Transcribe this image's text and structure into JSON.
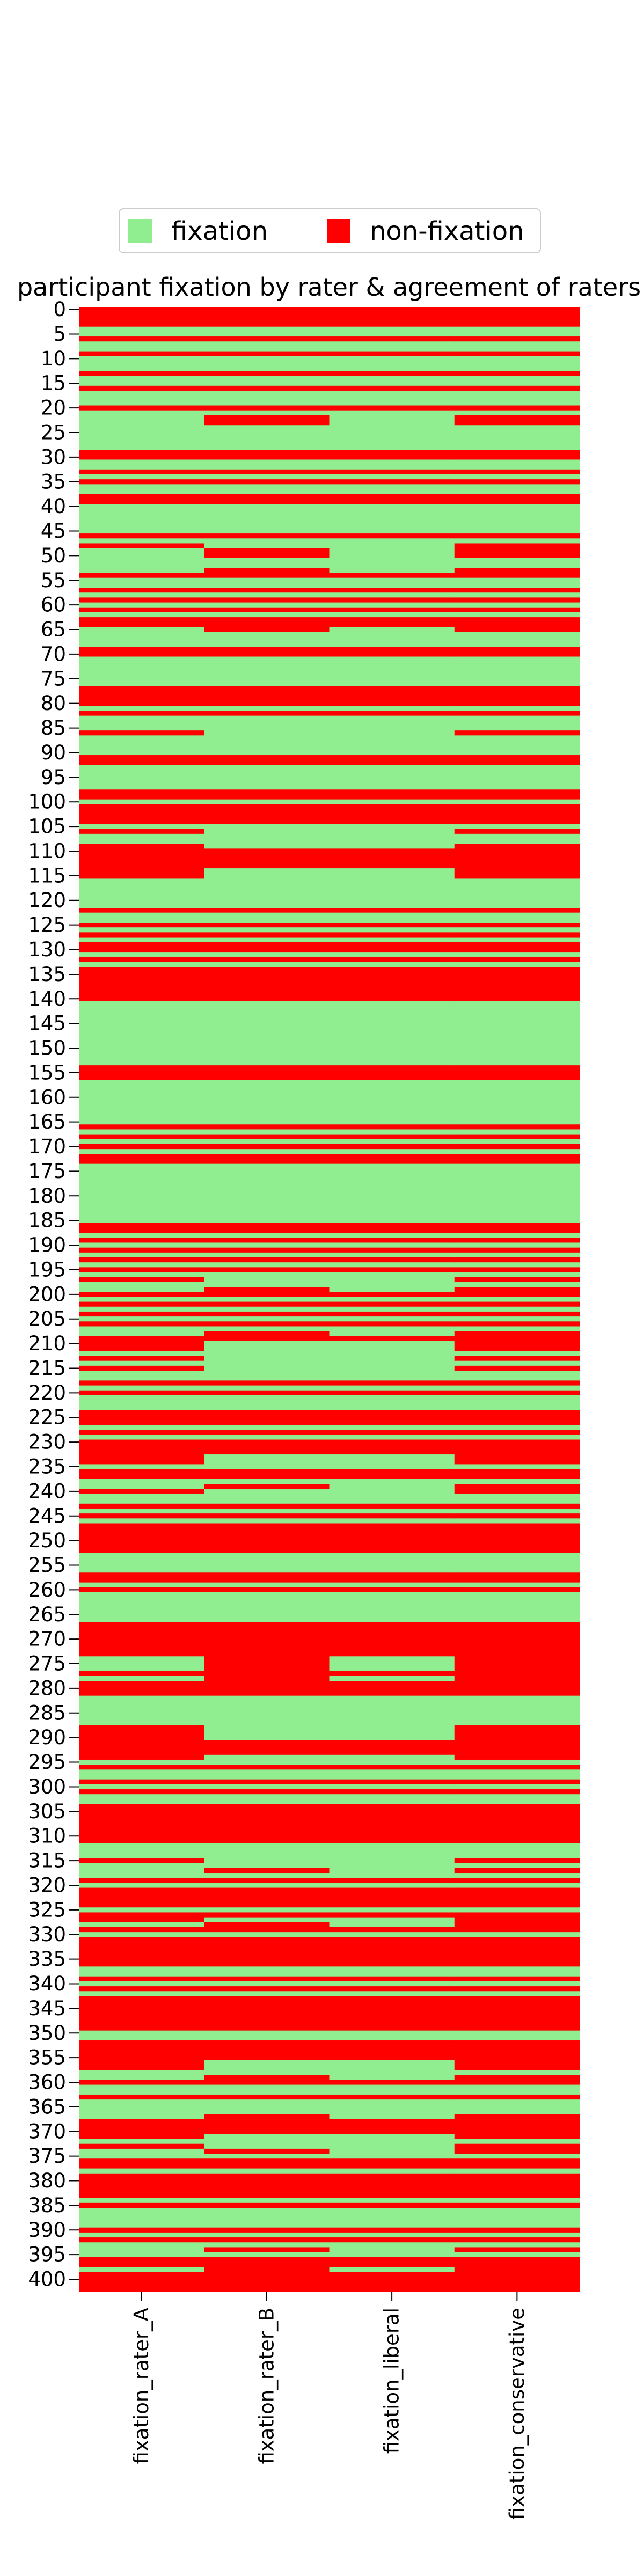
{
  "chart_data": {
    "type": "heatmap",
    "title": "participant fixation by rater & agreement of raters",
    "categories": [
      "fixation_rater_A",
      "fixation_rater_B",
      "fixation_liberal",
      "fixation_conservative"
    ],
    "legend": {
      "labels": [
        "fixation",
        "non-fixation"
      ],
      "colors": [
        "#90ee90",
        "#ff0000"
      ],
      "position": "upper center"
    },
    "yticks": [
      0,
      5,
      10,
      15,
      20,
      25,
      30,
      35,
      40,
      45,
      50,
      55,
      60,
      65,
      70,
      75,
      80,
      85,
      90,
      95,
      100,
      105,
      110,
      115,
      120,
      125,
      130,
      135,
      140,
      145,
      150,
      155,
      160,
      165,
      170,
      175,
      180,
      185,
      190,
      195,
      200,
      205,
      210,
      215,
      220,
      225,
      230,
      235,
      240,
      245,
      250,
      255,
      260,
      265,
      270,
      275,
      280,
      285,
      290,
      295,
      300,
      305,
      310,
      315,
      320,
      325,
      330,
      335,
      340,
      345,
      350,
      355,
      360,
      365,
      370,
      375,
      380,
      385,
      390,
      395,
      400
    ],
    "values": [
      [
        1,
        1,
        1,
        1,
        0,
        0,
        1,
        0,
        0,
        1,
        0,
        0,
        0,
        1,
        0,
        0,
        1,
        0,
        0,
        0,
        1,
        0,
        0,
        0,
        0,
        0,
        0,
        0,
        0,
        1,
        1,
        0,
        0,
        1,
        0,
        1,
        0,
        0,
        1,
        1,
        0,
        0,
        0,
        0,
        0,
        0,
        1,
        0,
        1,
        0,
        0,
        0,
        0,
        0,
        1,
        0,
        0,
        1,
        0,
        1,
        0,
        1,
        0,
        1,
        1,
        0,
        0,
        0,
        0,
        1,
        1,
        0,
        0,
        0,
        0,
        0,
        0,
        1,
        1,
        1,
        1,
        0,
        1,
        0,
        0,
        0,
        1,
        0,
        0,
        0,
        0,
        1,
        1,
        0,
        0,
        0,
        0,
        0,
        1,
        1,
        0,
        1,
        1,
        1,
        1,
        0,
        1,
        0,
        0,
        1,
        1,
        1,
        1,
        1,
        1,
        1,
        0,
        0,
        0,
        0,
        0,
        0,
        1,
        0,
        0,
        1,
        0,
        1,
        0,
        1,
        1,
        0,
        1,
        0,
        1,
        1,
        1,
        1,
        1,
        1,
        1,
        0,
        0,
        0,
        0,
        0,
        0,
        0,
        0,
        0,
        0,
        0,
        0,
        0,
        1,
        1,
        1,
        0,
        0,
        0,
        0,
        0,
        0,
        0,
        0,
        0,
        1,
        0,
        1,
        0,
        1,
        0,
        1,
        1,
        0,
        0,
        0,
        0,
        0,
        0,
        0,
        0,
        0,
        0,
        0,
        0,
        1,
        1,
        0,
        1,
        0,
        1,
        0,
        1,
        0,
        1,
        0,
        1,
        0,
        0,
        1,
        0,
        1,
        0,
        1,
        0,
        1,
        0,
        0,
        1,
        1,
        1,
        0,
        1,
        0,
        1,
        0,
        0,
        1,
        0,
        1,
        0,
        0,
        0,
        1,
        1,
        1,
        0,
        1,
        0,
        1,
        1,
        1,
        1,
        1,
        0,
        1,
        1,
        0,
        0,
        1,
        0,
        0,
        1,
        0,
        1,
        0,
        1,
        1,
        1,
        1,
        1,
        1,
        0,
        0,
        0,
        0,
        1,
        1,
        0,
        1,
        0,
        0,
        0,
        0,
        0,
        0,
        1,
        1,
        1,
        1,
        1,
        1,
        1,
        0,
        0,
        0,
        1,
        0,
        1,
        1,
        1,
        0,
        0,
        0,
        0,
        0,
        0,
        1,
        1,
        1,
        1,
        1,
        1,
        1,
        0,
        1,
        0,
        0,
        1,
        0,
        1,
        0,
        0,
        1,
        1,
        1,
        1,
        1,
        1,
        1,
        1,
        0,
        0,
        0,
        1,
        0,
        0,
        0,
        1,
        0,
        1,
        1,
        1,
        1,
        0,
        1,
        1,
        0,
        1,
        0,
        1,
        1,
        1,
        1,
        1,
        1,
        0,
        0,
        1,
        0,
        1,
        0,
        1,
        1,
        1,
        1,
        1,
        1,
        1,
        0,
        0,
        1,
        1,
        1,
        1,
        1,
        1,
        0,
        0,
        1,
        0,
        0,
        1,
        0,
        0,
        0,
        0,
        1,
        1,
        1,
        1,
        0,
        1,
        0,
        0,
        1,
        1,
        0,
        1,
        1,
        1,
        1,
        1,
        0,
        1,
        0,
        0,
        0,
        0,
        1,
        0,
        1,
        0,
        0,
        0,
        1,
        1,
        0,
        1,
        1,
        1,
        1
      ],
      [
        1,
        1,
        1,
        1,
        0,
        0,
        1,
        0,
        0,
        1,
        0,
        0,
        0,
        1,
        0,
        0,
        1,
        0,
        0,
        0,
        1,
        0,
        1,
        1,
        0,
        0,
        0,
        0,
        0,
        1,
        1,
        0,
        0,
        1,
        0,
        1,
        0,
        0,
        1,
        1,
        0,
        0,
        0,
        0,
        0,
        0,
        1,
        0,
        0,
        1,
        1,
        0,
        0,
        1,
        1,
        0,
        0,
        1,
        0,
        1,
        0,
        1,
        0,
        1,
        1,
        1,
        0,
        0,
        0,
        1,
        1,
        0,
        0,
        0,
        0,
        0,
        0,
        1,
        1,
        1,
        1,
        0,
        1,
        0,
        0,
        0,
        0,
        0,
        0,
        0,
        0,
        1,
        1,
        0,
        0,
        0,
        0,
        0,
        1,
        1,
        0,
        1,
        1,
        1,
        1,
        0,
        0,
        0,
        0,
        0,
        1,
        1,
        1,
        1,
        0,
        0,
        0,
        0,
        0,
        0,
        0,
        0,
        1,
        0,
        0,
        1,
        0,
        1,
        0,
        1,
        1,
        0,
        1,
        0,
        1,
        1,
        1,
        1,
        1,
        1,
        1,
        0,
        0,
        0,
        0,
        0,
        0,
        0,
        0,
        0,
        0,
        0,
        0,
        0,
        1,
        1,
        1,
        0,
        0,
        0,
        0,
        0,
        0,
        0,
        0,
        0,
        1,
        0,
        1,
        0,
        1,
        0,
        1,
        1,
        0,
        0,
        0,
        0,
        0,
        0,
        0,
        0,
        0,
        0,
        0,
        0,
        1,
        1,
        0,
        1,
        0,
        1,
        0,
        1,
        0,
        1,
        0,
        0,
        0,
        1,
        1,
        0,
        1,
        0,
        1,
        0,
        1,
        0,
        1,
        1,
        0,
        0,
        0,
        0,
        0,
        0,
        0,
        0,
        1,
        0,
        1,
        0,
        0,
        0,
        1,
        1,
        1,
        0,
        1,
        0,
        1,
        1,
        1,
        0,
        0,
        0,
        1,
        1,
        0,
        1,
        0,
        0,
        0,
        1,
        0,
        1,
        0,
        1,
        1,
        1,
        1,
        1,
        1,
        0,
        0,
        0,
        0,
        1,
        1,
        0,
        1,
        0,
        0,
        0,
        0,
        0,
        0,
        1,
        1,
        1,
        1,
        1,
        1,
        1,
        1,
        1,
        1,
        1,
        1,
        1,
        1,
        1,
        0,
        0,
        0,
        0,
        0,
        0,
        0,
        0,
        0,
        1,
        1,
        1,
        0,
        0,
        1,
        0,
        0,
        1,
        0,
        1,
        0,
        0,
        1,
        1,
        1,
        1,
        1,
        1,
        1,
        1,
        0,
        0,
        0,
        0,
        0,
        1,
        0,
        1,
        0,
        1,
        1,
        1,
        1,
        0,
        1,
        0,
        1,
        1,
        0,
        1,
        1,
        1,
        1,
        1,
        1,
        0,
        0,
        1,
        0,
        1,
        0,
        1,
        1,
        1,
        1,
        1,
        1,
        1,
        0,
        0,
        1,
        1,
        1,
        1,
        0,
        0,
        0,
        1,
        1,
        0,
        0,
        1,
        0,
        0,
        0,
        1,
        1,
        1,
        1,
        0,
        0,
        0,
        1,
        0,
        1,
        1,
        0,
        1,
        1,
        1,
        1,
        1,
        0,
        1,
        0,
        0,
        0,
        0,
        1,
        0,
        1,
        0,
        1,
        0,
        1,
        1,
        1,
        1,
        1,
        1,
        1
      ],
      [
        1,
        1,
        1,
        1,
        0,
        0,
        1,
        0,
        0,
        1,
        0,
        0,
        0,
        1,
        0,
        0,
        1,
        0,
        0,
        0,
        1,
        0,
        0,
        0,
        0,
        0,
        0,
        0,
        0,
        1,
        1,
        0,
        0,
        1,
        0,
        1,
        0,
        0,
        1,
        1,
        0,
        0,
        0,
        0,
        0,
        0,
        1,
        0,
        0,
        0,
        0,
        0,
        0,
        0,
        1,
        0,
        0,
        1,
        0,
        1,
        0,
        1,
        0,
        1,
        1,
        0,
        0,
        0,
        0,
        1,
        1,
        0,
        0,
        0,
        0,
        0,
        0,
        1,
        1,
        1,
        1,
        0,
        1,
        0,
        0,
        0,
        0,
        0,
        0,
        0,
        0,
        1,
        1,
        0,
        0,
        0,
        0,
        0,
        1,
        1,
        0,
        1,
        1,
        1,
        1,
        0,
        0,
        0,
        0,
        0,
        1,
        1,
        1,
        1,
        0,
        0,
        0,
        0,
        0,
        0,
        0,
        0,
        1,
        0,
        0,
        1,
        0,
        1,
        0,
        1,
        1,
        0,
        1,
        0,
        1,
        1,
        1,
        1,
        1,
        1,
        1,
        0,
        0,
        0,
        0,
        0,
        0,
        0,
        0,
        0,
        0,
        0,
        0,
        0,
        1,
        1,
        1,
        0,
        0,
        0,
        0,
        0,
        0,
        0,
        0,
        0,
        1,
        0,
        1,
        0,
        1,
        0,
        1,
        1,
        0,
        0,
        0,
        0,
        0,
        0,
        0,
        0,
        0,
        0,
        0,
        0,
        1,
        1,
        0,
        1,
        0,
        1,
        0,
        1,
        0,
        1,
        0,
        0,
        0,
        0,
        1,
        0,
        1,
        0,
        1,
        0,
        1,
        0,
        0,
        1,
        0,
        0,
        0,
        0,
        0,
        0,
        0,
        0,
        1,
        0,
        1,
        0,
        0,
        0,
        1,
        1,
        1,
        0,
        1,
        0,
        1,
        1,
        1,
        0,
        0,
        0,
        1,
        1,
        0,
        0,
        0,
        0,
        0,
        1,
        0,
        1,
        0,
        1,
        1,
        1,
        1,
        1,
        1,
        0,
        0,
        0,
        0,
        1,
        1,
        0,
        1,
        0,
        0,
        0,
        0,
        0,
        0,
        1,
        1,
        1,
        1,
        1,
        1,
        1,
        0,
        0,
        0,
        1,
        0,
        1,
        1,
        1,
        0,
        0,
        0,
        0,
        0,
        0,
        0,
        0,
        0,
        1,
        1,
        1,
        0,
        0,
        1,
        0,
        0,
        1,
        0,
        1,
        0,
        0,
        1,
        1,
        1,
        1,
        1,
        1,
        1,
        1,
        0,
        0,
        0,
        0,
        0,
        0,
        0,
        1,
        0,
        1,
        1,
        1,
        1,
        0,
        1,
        0,
        0,
        1,
        0,
        1,
        1,
        1,
        1,
        1,
        1,
        0,
        0,
        1,
        0,
        1,
        0,
        1,
        1,
        1,
        1,
        1,
        1,
        1,
        0,
        0,
        1,
        1,
        1,
        1,
        0,
        0,
        0,
        0,
        1,
        0,
        0,
        1,
        0,
        0,
        0,
        0,
        1,
        1,
        1,
        0,
        0,
        0,
        0,
        0,
        1,
        1,
        0,
        1,
        1,
        1,
        1,
        1,
        0,
        1,
        0,
        0,
        0,
        0,
        1,
        0,
        1,
        0,
        0,
        0,
        1,
        1,
        0,
        1,
        1,
        1,
        1
      ],
      [
        1,
        1,
        1,
        1,
        0,
        0,
        1,
        0,
        0,
        1,
        0,
        0,
        0,
        1,
        0,
        0,
        1,
        0,
        0,
        0,
        1,
        0,
        1,
        1,
        0,
        0,
        0,
        0,
        0,
        1,
        1,
        0,
        0,
        1,
        0,
        1,
        0,
        0,
        1,
        1,
        0,
        0,
        0,
        0,
        0,
        0,
        1,
        0,
        1,
        1,
        1,
        0,
        0,
        1,
        1,
        0,
        0,
        1,
        0,
        1,
        0,
        1,
        0,
        1,
        1,
        1,
        0,
        0,
        0,
        1,
        1,
        0,
        0,
        0,
        0,
        0,
        0,
        1,
        1,
        1,
        1,
        0,
        1,
        0,
        0,
        0,
        1,
        0,
        0,
        0,
        0,
        1,
        1,
        0,
        0,
        0,
        0,
        0,
        1,
        1,
        0,
        1,
        1,
        1,
        1,
        0,
        1,
        0,
        0,
        1,
        1,
        1,
        1,
        1,
        1,
        1,
        0,
        0,
        0,
        0,
        0,
        0,
        1,
        0,
        0,
        1,
        0,
        1,
        0,
        1,
        1,
        0,
        1,
        0,
        1,
        1,
        1,
        1,
        1,
        1,
        1,
        0,
        0,
        0,
        0,
        0,
        0,
        0,
        0,
        0,
        0,
        0,
        0,
        0,
        1,
        1,
        1,
        0,
        0,
        0,
        0,
        0,
        0,
        0,
        0,
        0,
        1,
        0,
        1,
        0,
        1,
        0,
        1,
        1,
        0,
        0,
        0,
        0,
        0,
        0,
        0,
        0,
        0,
        0,
        0,
        0,
        1,
        1,
        0,
        1,
        0,
        1,
        0,
        1,
        0,
        1,
        0,
        1,
        0,
        1,
        1,
        0,
        1,
        0,
        1,
        0,
        1,
        0,
        1,
        1,
        1,
        1,
        0,
        1,
        0,
        1,
        0,
        0,
        1,
        0,
        1,
        0,
        0,
        0,
        1,
        1,
        1,
        0,
        1,
        0,
        1,
        1,
        1,
        1,
        1,
        0,
        1,
        1,
        0,
        1,
        1,
        0,
        0,
        1,
        0,
        1,
        0,
        1,
        1,
        1,
        1,
        1,
        1,
        0,
        0,
        0,
        0,
        1,
        1,
        0,
        1,
        0,
        0,
        0,
        0,
        0,
        0,
        1,
        1,
        1,
        1,
        1,
        1,
        1,
        1,
        1,
        1,
        1,
        1,
        1,
        1,
        1,
        0,
        0,
        0,
        0,
        0,
        0,
        1,
        1,
        1,
        1,
        1,
        1,
        1,
        0,
        1,
        0,
        0,
        1,
        0,
        1,
        0,
        0,
        1,
        1,
        1,
        1,
        1,
        1,
        1,
        1,
        0,
        0,
        0,
        1,
        0,
        1,
        0,
        1,
        0,
        1,
        1,
        1,
        1,
        0,
        1,
        1,
        1,
        1,
        0,
        1,
        1,
        1,
        1,
        1,
        1,
        0,
        0,
        1,
        0,
        1,
        0,
        1,
        1,
        1,
        1,
        1,
        1,
        1,
        0,
        0,
        1,
        1,
        1,
        1,
        1,
        1,
        0,
        1,
        1,
        0,
        0,
        1,
        0,
        0,
        0,
        1,
        1,
        1,
        1,
        1,
        0,
        1,
        1,
        0,
        1,
        1,
        0,
        1,
        1,
        1,
        1,
        1,
        0,
        1,
        0,
        0,
        0,
        0,
        1,
        0,
        1,
        0,
        1,
        0,
        1,
        1,
        1,
        1,
        1,
        1,
        1
      ]
    ]
  }
}
